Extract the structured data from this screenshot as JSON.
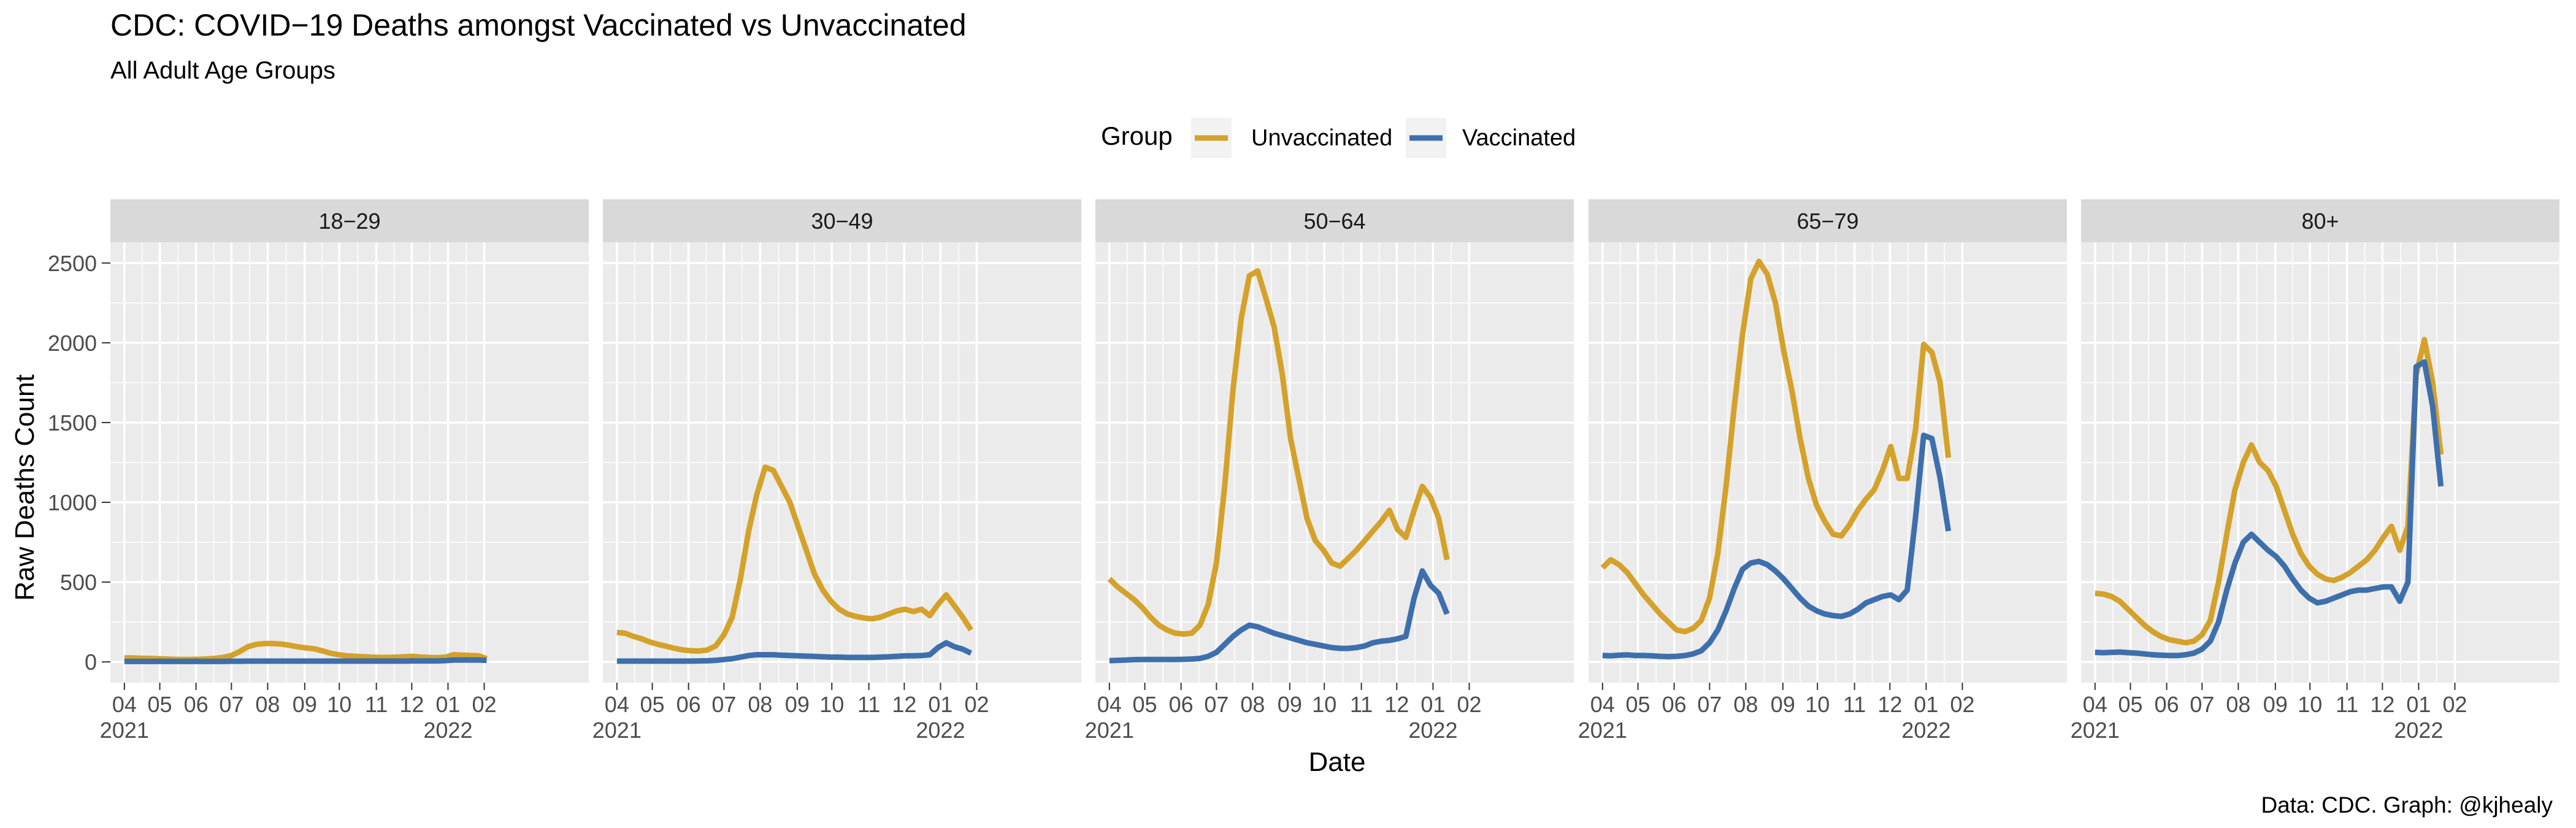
{
  "title": "CDC: COVID−19 Deaths amongst Vaccinated vs Unvaccinated",
  "subtitle": "All Adult Age Groups",
  "caption": "Data: CDC. Graph: @kjhealy",
  "legend": {
    "title": "Group",
    "items": [
      {
        "label": "Unvaccinated",
        "color": "#D4A12A"
      },
      {
        "label": "Vaccinated",
        "color": "#3E6FAD"
      }
    ]
  },
  "colors": {
    "panel_background": "#EBEBEB",
    "strip_background": "#D9D9D9",
    "grid": "#FFFFFF",
    "tick_text": "#4D4D4D"
  },
  "chart_data": {
    "type": "line",
    "xlabel": "Date",
    "ylabel": "Raw Deaths Count",
    "ylim": [
      -130,
      2630
    ],
    "y_ticks": [
      0,
      500,
      1000,
      1500,
      2000,
      2500
    ],
    "x_range": [
      -1.7,
      56.4
    ],
    "x_ticks": [
      {
        "week": 0,
        "label": "04",
        "sub": "2021"
      },
      {
        "week": 4.3,
        "label": "05",
        "sub": ""
      },
      {
        "week": 8.7,
        "label": "06",
        "sub": ""
      },
      {
        "week": 13,
        "label": "07",
        "sub": ""
      },
      {
        "week": 17.4,
        "label": "08",
        "sub": ""
      },
      {
        "week": 21.9,
        "label": "09",
        "sub": ""
      },
      {
        "week": 26.1,
        "label": "10",
        "sub": ""
      },
      {
        "week": 30.6,
        "label": "11",
        "sub": ""
      },
      {
        "week": 34.9,
        "label": "12",
        "sub": ""
      },
      {
        "week": 39.3,
        "label": "01",
        "sub": "2022"
      },
      {
        "week": 43.7,
        "label": "02",
        "sub": ""
      }
    ],
    "x_unit": "weeks since 2021-04-01 (week 0 = Apr 2021)",
    "panels": [
      {
        "label": "18−29",
        "series": [
          {
            "name": "Unvaccinated",
            "values": [
              25,
              25,
              23,
              22,
              20,
              18,
              16,
              15,
              15,
              16,
              18,
              22,
              28,
              40,
              65,
              95,
              110,
              115,
              115,
              112,
              105,
              95,
              88,
              82,
              70,
              55,
              45,
              38,
              35,
              33,
              30,
              28,
              28,
              30,
              32,
              35,
              30,
              28,
              26,
              30,
              45,
              42,
              40,
              38,
              20
            ]
          },
          {
            "name": "Vaccinated",
            "values": [
              3,
              3,
              3,
              3,
              3,
              3,
              3,
              3,
              3,
              3,
              3,
              3,
              3,
              4,
              4,
              5,
              5,
              5,
              5,
              5,
              5,
              5,
              5,
              5,
              5,
              5,
              5,
              5,
              5,
              5,
              5,
              5,
              5,
              5,
              5,
              6,
              6,
              6,
              6,
              8,
              12,
              12,
              12,
              12,
              10
            ]
          }
        ]
      },
      {
        "label": "30−49",
        "series": [
          {
            "name": "Unvaccinated",
            "values": [
              185,
              180,
              160,
              145,
              125,
              110,
              98,
              85,
              75,
              70,
              68,
              75,
              100,
              170,
              280,
              520,
              820,
              1050,
              1220,
              1200,
              1100,
              1000,
              850,
              700,
              550,
              450,
              380,
              330,
              300,
              285,
              275,
              270,
              280,
              300,
              320,
              330,
              315,
              330,
              290,
              360,
              420,
              350,
              280,
              200
            ]
          },
          {
            "name": "Vaccinated",
            "values": [
              5,
              5,
              5,
              5,
              5,
              5,
              5,
              5,
              5,
              5,
              6,
              7,
              10,
              15,
              20,
              30,
              40,
              45,
              45,
              45,
              42,
              40,
              38,
              36,
              34,
              32,
              30,
              30,
              28,
              28,
              28,
              28,
              30,
              32,
              35,
              38,
              38,
              40,
              45,
              90,
              120,
              95,
              80,
              55
            ]
          }
        ]
      },
      {
        "label": "50−64",
        "series": [
          {
            "name": "Unvaccinated",
            "values": [
              520,
              470,
              430,
              390,
              340,
              280,
              230,
              200,
              180,
              175,
              180,
              230,
              360,
              620,
              1100,
              1700,
              2150,
              2420,
              2450,
              2280,
              2100,
              1800,
              1400,
              1150,
              900,
              760,
              700,
              620,
              600,
              650,
              700,
              760,
              820,
              880,
              950,
              830,
              780,
              950,
              1100,
              1030,
              900,
              640
            ]
          },
          {
            "name": "Vaccinated",
            "values": [
              8,
              10,
              12,
              14,
              15,
              15,
              15,
              15,
              15,
              16,
              18,
              22,
              35,
              60,
              110,
              160,
              200,
              230,
              220,
              200,
              180,
              165,
              150,
              135,
              120,
              110,
              100,
              90,
              85,
              85,
              90,
              100,
              120,
              130,
              135,
              145,
              160,
              400,
              570,
              480,
              430,
              300
            ]
          }
        ]
      },
      {
        "label": "65−79",
        "series": [
          {
            "name": "Unvaccinated",
            "values": [
              590,
              640,
              610,
              560,
              490,
              420,
              360,
              300,
              250,
              200,
              190,
              210,
              260,
              400,
              680,
              1100,
              1600,
              2050,
              2400,
              2510,
              2430,
              2250,
              1950,
              1700,
              1400,
              1150,
              980,
              880,
              800,
              790,
              860,
              950,
              1020,
              1080,
              1200,
              1350,
              1150,
              1150,
              1450,
              1990,
              1940,
              1750,
              1280
            ]
          },
          {
            "name": "Vaccinated",
            "values": [
              40,
              38,
              42,
              44,
              40,
              40,
              38,
              35,
              33,
              35,
              40,
              50,
              70,
              120,
              200,
              320,
              460,
              580,
              620,
              630,
              610,
              570,
              520,
              460,
              400,
              350,
              320,
              300,
              290,
              285,
              300,
              330,
              370,
              390,
              410,
              420,
              390,
              450,
              900,
              1420,
              1400,
              1150,
              820
            ]
          }
        ]
      },
      {
        "label": "80+",
        "series": [
          {
            "name": "Unvaccinated",
            "values": [
              430,
              425,
              410,
              380,
              330,
              280,
              230,
              190,
              160,
              140,
              130,
              120,
              130,
              170,
              260,
              500,
              800,
              1080,
              1250,
              1360,
              1250,
              1200,
              1100,
              950,
              800,
              680,
              600,
              550,
              520,
              510,
              530,
              560,
              600,
              640,
              700,
              780,
              850,
              700,
              850,
              1800,
              2020,
              1750,
              1300
            ]
          },
          {
            "name": "Vaccinated",
            "values": [
              60,
              58,
              60,
              62,
              58,
              55,
              50,
              45,
              42,
              40,
              40,
              45,
              55,
              80,
              130,
              250,
              450,
              620,
              750,
              800,
              750,
              700,
              660,
              600,
              520,
              450,
              400,
              370,
              380,
              400,
              420,
              440,
              450,
              450,
              460,
              470,
              470,
              380,
              500,
              1850,
              1880,
              1600,
              1100
            ]
          }
        ]
      }
    ]
  }
}
